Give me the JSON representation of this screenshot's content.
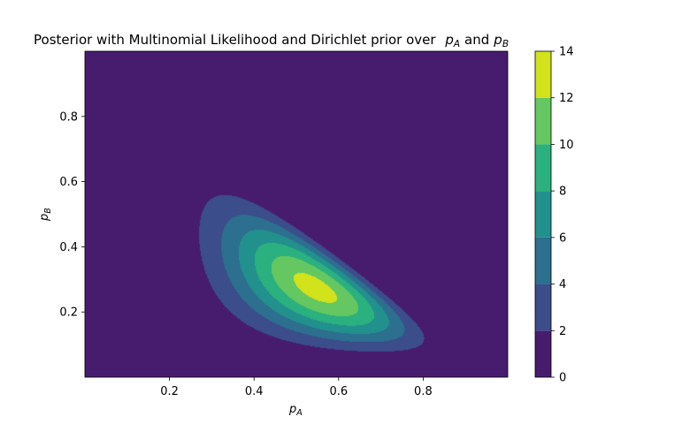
{
  "chart_data": {
    "type": "contourf",
    "title": "Posterior with Multinomial Likelihood and Dirichlet prior over  $p_A$ and $p_B$",
    "title_parts": {
      "text": "Posterior with Multinomial Likelihood and Dirichlet prior over ",
      "sym1_base": "p",
      "sym1_sub": "A",
      "conj": "and",
      "sym2_base": "p",
      "sym2_sub": "B"
    },
    "xlabel": {
      "base": "p",
      "sub": "A"
    },
    "ylabel": {
      "base": "p",
      "sub": "B"
    },
    "xlim": [
      0.0,
      1.0
    ],
    "ylim": [
      0.0,
      1.0
    ],
    "xticks": [
      0.2,
      0.4,
      0.6,
      0.8
    ],
    "yticks": [
      0.2,
      0.4,
      0.6,
      0.8
    ],
    "xtick_labels": [
      "0.2",
      "0.4",
      "0.6",
      "0.8"
    ],
    "ytick_labels": [
      "0.2",
      "0.4",
      "0.6",
      "0.8"
    ],
    "distribution": {
      "family": "Dirichlet",
      "alpha": [
        7,
        4,
        3
      ]
    },
    "levels": [
      0,
      2,
      4,
      6,
      8,
      10,
      12,
      14
    ],
    "level_colors": [
      "#471c6e",
      "#3b4d8a",
      "#2c6f8e",
      "#22908d",
      "#2bb07f",
      "#64c761",
      "#d2e21b"
    ],
    "colorbar": {
      "ticks": [
        0,
        2,
        4,
        6,
        8,
        10,
        12,
        14
      ],
      "tick_labels": [
        "0",
        "2",
        "4",
        "6",
        "8",
        "10",
        "12",
        "14"
      ],
      "range": [
        0,
        14
      ]
    },
    "grid": false
  }
}
